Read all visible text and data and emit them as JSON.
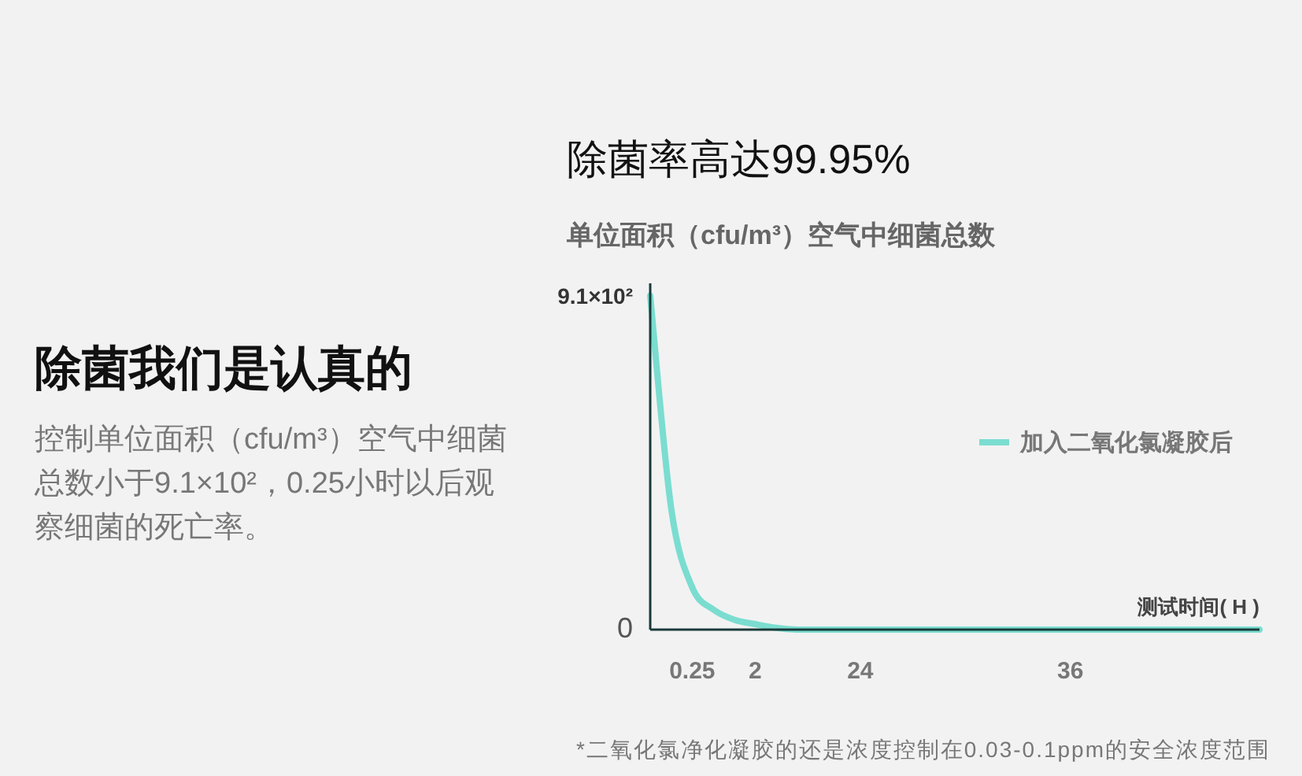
{
  "chart_data": {
    "type": "line",
    "title": "除菌我们是认真的",
    "subtitle": "单位面积（cfu/m³）空气中细菌总数",
    "xlabel": "测试时间( H )",
    "annotations": [
      "控制单位面积（cfu/m³）空气中细菌总数小于9.1×10²，0.25小时以后观察细菌的死亡率。",
      "除菌率高达99.95%",
      "*二氧化氯净化凝胶的还是浓度控制在0.03-0.1ppm的安全浓度范围"
    ],
    "categories": [
      null,
      null,
      "0.25",
      null,
      null,
      "2",
      null,
      null,
      null,
      null,
      "24",
      null,
      null,
      null,
      null,
      null,
      null,
      null,
      null,
      null,
      "36",
      null,
      null,
      null,
      null,
      null,
      null,
      null,
      null,
      null
    ],
    "series": [
      {
        "name": "加入二氧化氯凝胶后",
        "color": "#7addd0",
        "values": [
          910,
          330,
          115,
          55,
          27,
          15,
          5,
          0,
          0,
          0,
          0,
          0,
          0,
          0,
          0,
          0,
          0,
          0,
          0,
          0,
          0,
          0,
          0,
          0,
          0,
          0,
          0,
          0,
          0,
          0
        ]
      }
    ],
    "ylim": [
      0,
      944
    ],
    "yticks": [
      0,
      {
        "value": 910,
        "label": "9.1×10²"
      }
    ],
    "grid": false,
    "legend": "right",
    "marker": "none",
    "line_style": "solid"
  }
}
